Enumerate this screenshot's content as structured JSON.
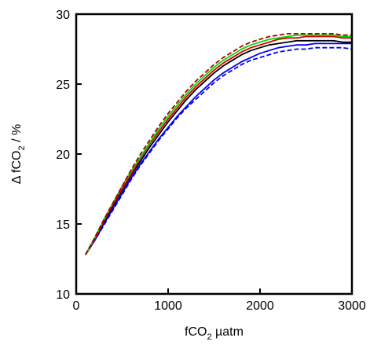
{
  "chart_data": {
    "type": "line",
    "xlabel": {
      "main": "fCO",
      "sub": "2",
      "rest": " µatm"
    },
    "ylabel": {
      "main": "Δ fCO",
      "sub": "2",
      "rest": "  / %"
    },
    "xlim": [
      0,
      3000
    ],
    "ylim": [
      10,
      30
    ],
    "x_ticks": [
      0,
      1000,
      2000,
      3000
    ],
    "y_ticks": [
      10,
      15,
      20,
      25,
      30
    ],
    "grid": false,
    "legend": "none",
    "x": [
      100,
      200,
      300,
      400,
      500,
      600,
      700,
      800,
      900,
      1000,
      1100,
      1200,
      1300,
      1400,
      1500,
      1600,
      1700,
      1800,
      1900,
      2000,
      2100,
      2200,
      2300,
      2400,
      2500,
      2600,
      2700,
      2800,
      2900,
      3000
    ],
    "series": [
      {
        "color": "#0000ee",
        "dash": "solid",
        "values": [
          12.8,
          13.8,
          15.0,
          16.1,
          17.2,
          18.3,
          19.3,
          20.2,
          21.1,
          21.9,
          22.7,
          23.4,
          24.1,
          24.7,
          25.3,
          25.8,
          26.2,
          26.6,
          26.9,
          27.2,
          27.4,
          27.6,
          27.7,
          27.8,
          27.8,
          27.9,
          27.9,
          27.9,
          27.9,
          27.9
        ]
      },
      {
        "color": "#0000ee",
        "dash": "dashed",
        "values": [
          12.8,
          13.8,
          14.9,
          16.0,
          17.1,
          18.2,
          19.2,
          20.1,
          21.0,
          21.8,
          22.6,
          23.3,
          23.9,
          24.5,
          25.1,
          25.6,
          26.0,
          26.4,
          26.7,
          26.9,
          27.1,
          27.3,
          27.4,
          27.5,
          27.5,
          27.6,
          27.6,
          27.6,
          27.6,
          27.5
        ]
      },
      {
        "color": "#000000",
        "dash": "solid",
        "values": [
          12.8,
          13.9,
          15.1,
          16.3,
          17.4,
          18.5,
          19.5,
          20.5,
          21.4,
          22.3,
          23.1,
          23.9,
          24.6,
          25.2,
          25.8,
          26.3,
          26.7,
          27.1,
          27.4,
          27.6,
          27.8,
          27.9,
          28.0,
          28.1,
          28.1,
          28.1,
          28.1,
          28.1,
          28.0,
          28.0
        ]
      },
      {
        "color": "#dd0000",
        "dash": "solid",
        "values": [
          12.8,
          13.9,
          15.2,
          16.4,
          17.5,
          18.6,
          19.7,
          20.7,
          21.6,
          22.5,
          23.3,
          24.1,
          24.8,
          25.4,
          26.0,
          26.5,
          26.9,
          27.3,
          27.6,
          27.8,
          28.0,
          28.2,
          28.3,
          28.3,
          28.4,
          28.4,
          28.4,
          28.4,
          28.3,
          28.3
        ]
      },
      {
        "color": "#00dd00",
        "dash": "solid",
        "values": [
          12.8,
          14.0,
          15.3,
          16.5,
          17.7,
          18.8,
          19.8,
          20.8,
          21.8,
          22.7,
          23.5,
          24.3,
          25.0,
          25.6,
          26.2,
          26.7,
          27.1,
          27.5,
          27.8,
          28.0,
          28.2,
          28.3,
          28.4,
          28.5,
          28.5,
          28.5,
          28.5,
          28.5,
          28.4,
          28.4
        ]
      },
      {
        "color": "#aa0000",
        "dash": "dashed",
        "values": [
          12.8,
          14.0,
          15.3,
          16.5,
          17.7,
          18.9,
          20.0,
          21.0,
          22.0,
          22.9,
          23.7,
          24.5,
          25.2,
          25.8,
          26.4,
          26.9,
          27.3,
          27.7,
          28.0,
          28.2,
          28.4,
          28.5,
          28.6,
          28.6,
          28.6,
          28.6,
          28.6,
          28.6,
          28.5,
          28.5
        ]
      }
    ]
  }
}
